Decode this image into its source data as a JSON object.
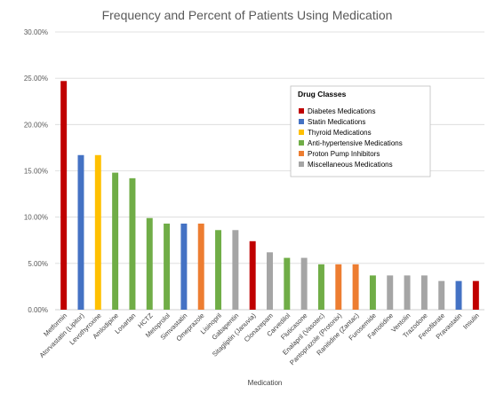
{
  "chart_data": {
    "type": "bar",
    "title": "Frequency and Percent of Patients Using Medication",
    "xlabel": "Medication",
    "ylabel": "",
    "ylim": [
      0,
      30
    ],
    "y_ticks": [
      "0.00%",
      "5.00%",
      "10.00%",
      "15.00%",
      "20.00%",
      "25.00%",
      "30.00%"
    ],
    "grid": true,
    "legend_position": "upper-right",
    "legend_title": "Drug Classes",
    "legend": [
      {
        "name": "Diabetes Medications",
        "color": "#c00000"
      },
      {
        "name": "Statin Medications",
        "color": "#4472c4"
      },
      {
        "name": "Thyroid Medications",
        "color": "#ffc000"
      },
      {
        "name": "Anti-hypertensive Medications",
        "color": "#70ad47"
      },
      {
        "name": "Proton Pump Inhibitors",
        "color": "#ed7d31"
      },
      {
        "name": "Miscellaneous Medications",
        "color": "#a5a5a5"
      }
    ],
    "categories": [
      "Metformin",
      "Atorvastatin (Lipitor)",
      "Levothyroxine",
      "Amlodipine",
      "Losartan",
      "HCTZ",
      "Metoprolol",
      "Simvastatin",
      "Omeprazole",
      "Lisinopril",
      "Gabapentin",
      "Sitagliptin (Januvia)",
      "Clonazepam",
      "Carvedilol",
      "Fluticasone",
      "Enalapril (Vasotec)",
      "Pantoprazole (Protonix)",
      "Ranitidine (Zantac)",
      "Furosemide",
      "Famotidine",
      "Ventolin",
      "Trazodone",
      "Fenofibrate",
      "Pravastatin",
      "Insulin"
    ],
    "values": [
      24.7,
      16.7,
      16.7,
      14.8,
      14.2,
      9.9,
      9.3,
      9.3,
      9.3,
      8.6,
      8.6,
      7.4,
      6.2,
      5.6,
      5.6,
      4.9,
      4.9,
      4.9,
      3.7,
      3.7,
      3.7,
      3.7,
      3.1,
      3.1,
      3.1
    ],
    "classes": [
      0,
      1,
      2,
      3,
      3,
      3,
      3,
      1,
      4,
      3,
      5,
      0,
      5,
      3,
      5,
      3,
      4,
      4,
      3,
      5,
      5,
      5,
      5,
      1,
      0
    ]
  }
}
